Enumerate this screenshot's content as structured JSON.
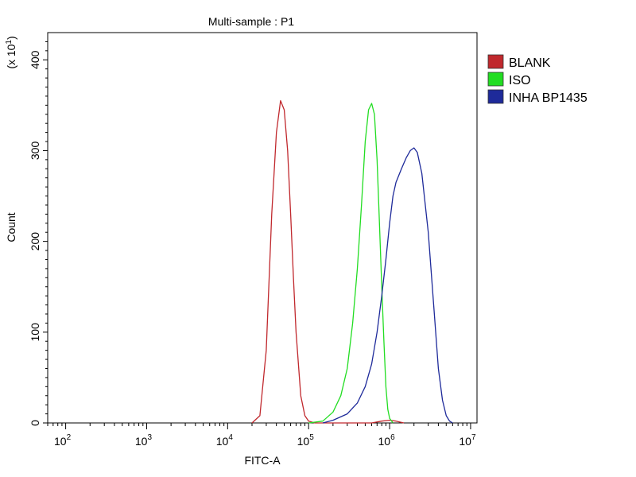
{
  "chart_data": {
    "type": "line",
    "title": "Multi-sample : P1",
    "xlabel": "FITC-A",
    "ylabel": "Count",
    "y_multiplier_label": "(x 10",
    "y_multiplier_exp": "1",
    "y_multiplier_close": ")",
    "x_scale": "log",
    "xlim": [
      60,
      12000000
    ],
    "ylim": [
      0,
      430
    ],
    "y_ticks": [
      0,
      100,
      200,
      300,
      400
    ],
    "y_tick_labels": [
      "0",
      "100",
      "200",
      "300",
      "400"
    ],
    "x_ticks": [
      100,
      1000,
      10000,
      100000,
      1000000,
      10000000
    ],
    "x_tick_base": [
      "10",
      "10",
      "10",
      "10",
      "10",
      "10"
    ],
    "x_tick_exp": [
      "2",
      "3",
      "4",
      "5",
      "6",
      "7"
    ],
    "grid": false,
    "legend_position": "right",
    "series": [
      {
        "name": "BLANK",
        "color": "#c0282d",
        "x": [
          20000,
          25000,
          30000,
          35000,
          40000,
          45000,
          50000,
          55000,
          60000,
          65000,
          70000,
          80000,
          90000,
          100000,
          120000,
          200000,
          400000,
          600000,
          800000,
          1000000,
          1200000,
          1500000
        ],
        "y": [
          0,
          8,
          80,
          230,
          320,
          355,
          345,
          300,
          230,
          160,
          100,
          30,
          8,
          2,
          0,
          0,
          0,
          0,
          2,
          3,
          2,
          0
        ]
      },
      {
        "name": "ISO",
        "color": "#22dd22",
        "x": [
          100000,
          150000,
          200000,
          250000,
          300000,
          350000,
          400000,
          450000,
          500000,
          550000,
          600000,
          650000,
          700000,
          750000,
          800000,
          850000,
          900000,
          950000,
          1000000,
          1100000
        ],
        "y": [
          0,
          2,
          12,
          30,
          60,
          110,
          170,
          240,
          310,
          345,
          352,
          340,
          290,
          220,
          150,
          90,
          40,
          15,
          5,
          0
        ]
      },
      {
        "name": "INHA BP1435",
        "color": "#1e2a9a",
        "x": [
          150000,
          200000,
          300000,
          400000,
          500000,
          600000,
          700000,
          800000,
          900000,
          1000000,
          1100000,
          1200000,
          1400000,
          1600000,
          1800000,
          2000000,
          2200000,
          2500000,
          3000000,
          3500000,
          4000000,
          4500000,
          5000000,
          5500000,
          6000000
        ],
        "y": [
          0,
          3,
          10,
          22,
          40,
          65,
          100,
          140,
          180,
          220,
          250,
          265,
          280,
          292,
          300,
          303,
          298,
          275,
          210,
          130,
          60,
          25,
          8,
          2,
          0
        ]
      }
    ]
  }
}
